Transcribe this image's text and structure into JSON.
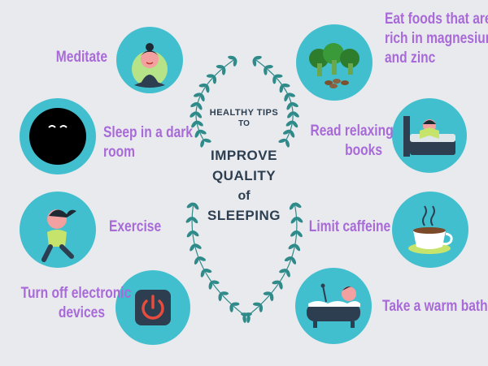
{
  "title": {
    "healthy_tips": "HEALTHY TIPS",
    "to": "TO",
    "line1": "IMPROVE",
    "line2": "QUALITY",
    "line3": "of",
    "line4": "SLEEPING"
  },
  "tips": {
    "meditate": {
      "lines": [
        "Meditate"
      ],
      "icon": "meditation-icon"
    },
    "dark_room": {
      "lines": [
        "Sleep in a dark",
        "room"
      ],
      "icon": "dark-room-icon"
    },
    "exercise": {
      "lines": [
        "Exercise"
      ],
      "icon": "runner-icon"
    },
    "electronics": {
      "lines": [
        "Turn off electronic",
        "devices"
      ],
      "icon": "power-button-icon"
    },
    "foods": {
      "lines": [
        "Eat foods that are",
        "rich in magnesium",
        "and zinc"
      ],
      "icon": "broccoli-icon"
    },
    "books": {
      "lines": [
        "Read relaxing",
        "books"
      ],
      "icon": "reading-in-bed-icon"
    },
    "caffeine": {
      "lines": [
        "Limit caffeine"
      ],
      "icon": "coffee-cup-icon"
    },
    "bath": {
      "lines": [
        "Take a warm bath"
      ],
      "icon": "bathtub-icon"
    }
  },
  "colors": {
    "circle": "#42bfcf",
    "label": "#a86ad8",
    "center_text": "#2c3e50",
    "wreath": "#2f8a8a",
    "background": "#e8eaed"
  }
}
